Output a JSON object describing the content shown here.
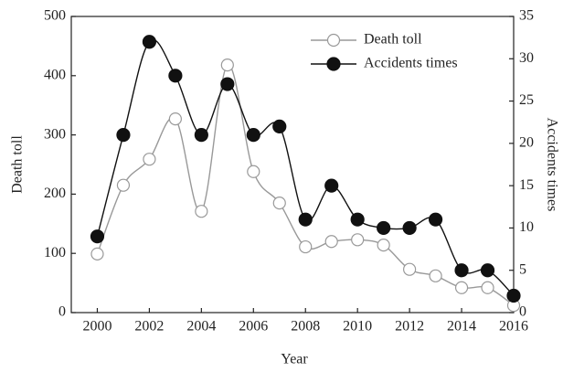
{
  "chart_data": {
    "type": "line",
    "x_label": "Year",
    "y_label": "Death toll",
    "y2_label": "Accidents times",
    "x": [
      2000,
      2001,
      2002,
      2003,
      2004,
      2005,
      2006,
      2007,
      2008,
      2009,
      2010,
      2011,
      2012,
      2013,
      2014,
      2015,
      2016
    ],
    "series": [
      {
        "name": "Death toll",
        "color": "#999999",
        "marker": "open",
        "values": [
          99,
          215,
          259,
          327,
          171,
          418,
          238,
          185,
          111,
          120,
          123,
          114,
          73,
          62,
          42,
          42,
          12
        ]
      },
      {
        "name": "Accidents times",
        "color": "#111111",
        "marker": "filled",
        "axis": "y2",
        "values": [
          9,
          21,
          32,
          28,
          21,
          27,
          21,
          22,
          11,
          15,
          11,
          10,
          10,
          11,
          5,
          5,
          2
        ]
      }
    ],
    "xlim": [
      1999,
      2016
    ],
    "xticks": [
      2000,
      2002,
      2004,
      2006,
      2008,
      2010,
      2012,
      2014,
      2016
    ],
    "ylim": [
      0,
      500
    ],
    "yticks": [
      0,
      100,
      200,
      300,
      400,
      500
    ],
    "y2lim": [
      0,
      35
    ],
    "y2ticks": [
      0,
      5,
      10,
      15,
      20,
      25,
      30,
      35
    ],
    "legend": "upper right"
  }
}
